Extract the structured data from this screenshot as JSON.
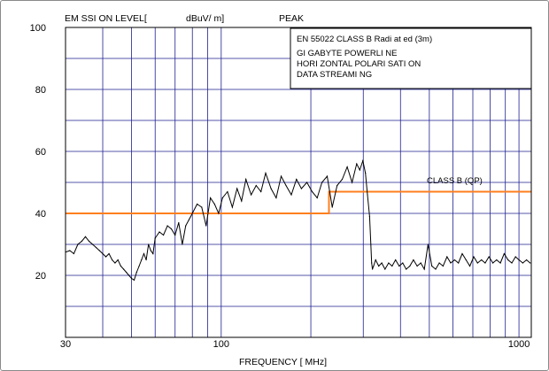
{
  "chart_data": {
    "type": "line",
    "scale_x": "log",
    "grid": true,
    "header": {
      "ylabel": "EM SSI ON LEVEL[",
      "units": "dBuV/ m]",
      "detector": "PEAK"
    },
    "xlabel": "FREQUENCY [ MHz]",
    "xlim": [
      30,
      1100
    ],
    "ylim": [
      0,
      100
    ],
    "x_tick_labels": [
      {
        "value": 30,
        "label": "30"
      },
      {
        "value": 100,
        "label": "100"
      },
      {
        "value": 1000,
        "label": "1000"
      }
    ],
    "y_tick_labels": [
      {
        "value": 20,
        "label": "20"
      },
      {
        "value": 40,
        "label": "40"
      },
      {
        "value": 60,
        "label": "60"
      },
      {
        "value": 80,
        "label": "80"
      },
      {
        "value": 100,
        "label": "100"
      }
    ],
    "info_box": [
      "EN 55022 CLASS B Radi at ed (3m)",
      "GI GABYTE POWERLI NE",
      "HORI ZONTAL POLARI SATI ON",
      "DATA STREAMI NG"
    ],
    "limit_line": {
      "label": "CLASS B (QP)",
      "color": "#ff7f1e",
      "segments": [
        {
          "x": [
            30,
            230
          ],
          "y": [
            40,
            40
          ]
        },
        {
          "x": [
            230,
            1100
          ],
          "y": [
            47,
            47
          ]
        }
      ]
    },
    "series": [
      {
        "color": "#000000",
        "x": [
          30,
          31,
          32,
          33,
          34,
          35,
          36,
          37,
          38,
          39,
          40,
          41,
          42,
          43,
          44,
          45,
          46,
          47,
          48,
          49,
          50,
          51,
          52,
          53,
          54,
          55,
          56,
          57,
          58,
          59,
          60,
          62,
          64,
          66,
          68,
          70,
          72,
          74,
          76,
          78,
          80,
          83,
          86,
          89,
          92,
          95,
          98,
          101,
          105,
          109,
          113,
          117,
          121,
          126,
          131,
          136,
          141,
          147,
          153,
          159,
          165,
          172,
          179,
          186,
          194,
          202,
          210,
          218,
          227,
          236,
          245,
          255,
          265,
          275,
          285,
          292,
          299,
          305,
          310,
          315,
          318,
          320,
          322,
          325,
          330,
          338,
          346,
          355,
          365,
          375,
          385,
          396,
          407,
          418,
          430,
          442,
          455,
          468,
          481,
          495,
          510,
          525,
          540,
          556,
          573,
          590,
          608,
          626,
          645,
          664,
          684,
          705,
          726,
          748,
          770,
          793,
          817,
          841,
          866,
          892,
          919,
          946,
          974,
          1000,
          1030,
          1060,
          1090
        ],
        "y": [
          27.5,
          28,
          27,
          30,
          31,
          32.5,
          31,
          30,
          29,
          28,
          27,
          26,
          27,
          25,
          24,
          25,
          23,
          22,
          21,
          20,
          19,
          18.5,
          21,
          23,
          25,
          27,
          25,
          30,
          28,
          27,
          32,
          34,
          33,
          36,
          35,
          33,
          37,
          30,
          36,
          38,
          40,
          43,
          42,
          36,
          45,
          43,
          40,
          45,
          47,
          42,
          48,
          44,
          51,
          46,
          49,
          47,
          53,
          48,
          45,
          52,
          49,
          46,
          51,
          48,
          50,
          47,
          45,
          50,
          52,
          42,
          49,
          51,
          55,
          50,
          56,
          54,
          57,
          53,
          46,
          39,
          30,
          24,
          22,
          23,
          25,
          23,
          24,
          22,
          24,
          23,
          25,
          23,
          24,
          22,
          23,
          25,
          23,
          24,
          22,
          30,
          23,
          22,
          24,
          23,
          26,
          24,
          25,
          24,
          27,
          25,
          23,
          26,
          24,
          25,
          24,
          26,
          24,
          25,
          24,
          27,
          25,
          24,
          26,
          25,
          24,
          25,
          24
        ]
      }
    ]
  }
}
